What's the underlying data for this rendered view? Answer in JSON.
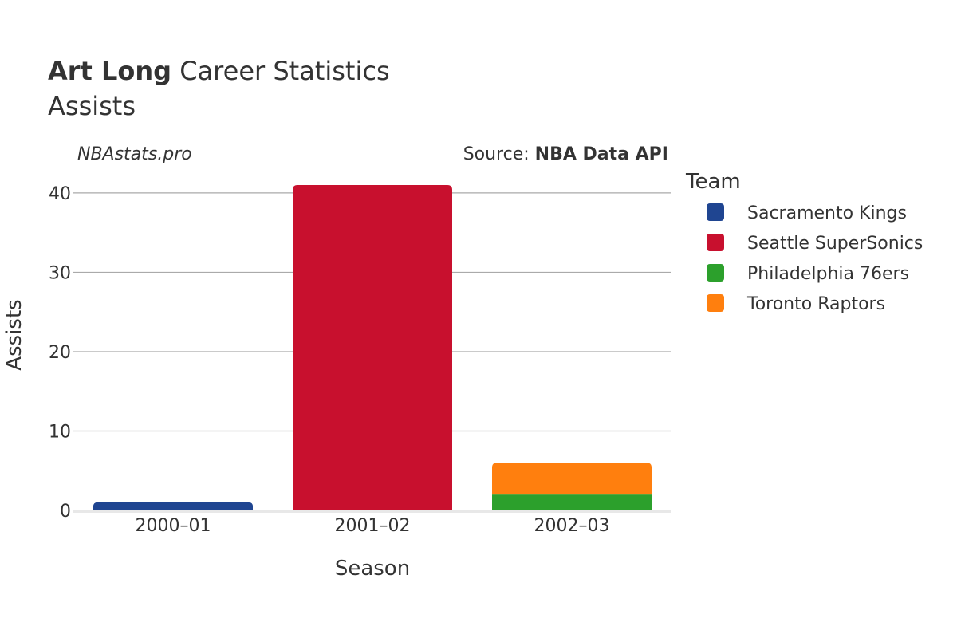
{
  "header": {
    "title_bold": "Art Long",
    "title_rest": "Career Statistics",
    "subtitle": "Assists",
    "brand": "NBAstats.pro",
    "source_prefix": "Source: ",
    "source_name": "NBA Data API"
  },
  "chart_data": {
    "type": "bar",
    "stacked": true,
    "categories": [
      "2000–01",
      "2001–02",
      "2002–03"
    ],
    "xlabel": "Season",
    "ylabel": "Assists",
    "ylim": [
      0,
      42
    ],
    "yticks": [
      0,
      10,
      20,
      30,
      40
    ],
    "grid": true,
    "legend_title": "Team",
    "legend_placement": "right",
    "series": [
      {
        "name": "Sacramento Kings",
        "color": "#1f4591",
        "values": [
          1,
          0,
          0
        ]
      },
      {
        "name": "Seattle SuperSonics",
        "color": "#c8102e",
        "values": [
          0,
          41,
          0
        ]
      },
      {
        "name": "Philadelphia 76ers",
        "color": "#2ca02c",
        "values": [
          0,
          0,
          2
        ]
      },
      {
        "name": "Toronto Raptors",
        "color": "#ff7f0e",
        "values": [
          0,
          0,
          4
        ]
      }
    ]
  }
}
